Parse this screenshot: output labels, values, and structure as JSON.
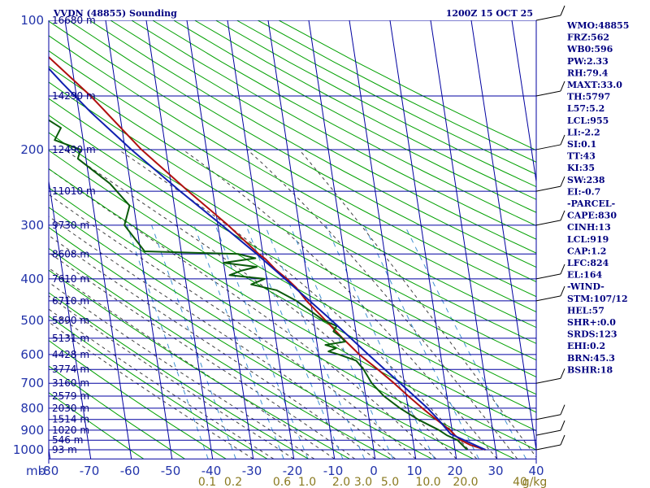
{
  "header": {
    "station_title": "VVDN (48855) Sounding",
    "time_label": "1200Z 15 OCT 25"
  },
  "chart_data": {
    "type": "line",
    "title": "VVDN (48855) Sounding",
    "x_unit_label": "mb",
    "pressure_levels": [
      100,
      200,
      300,
      400,
      500,
      600,
      700,
      800,
      900,
      1000
    ],
    "pressure_tick_labels": [
      "100",
      "200",
      "300",
      "400",
      "500",
      "600",
      "700",
      "800",
      "900",
      "1000"
    ],
    "pressure_range": [
      100,
      1050
    ],
    "pressure_scale": "log",
    "temperature_ticks": [
      -80,
      -70,
      -60,
      -50,
      -40,
      -30,
      -20,
      -10,
      0,
      10,
      20,
      30,
      40
    ],
    "temperature_tick_labels": [
      "-80",
      "-70",
      "-60",
      "-50",
      "-40",
      "-30",
      "-20",
      "-10",
      "0",
      "10",
      "20",
      "30",
      "40"
    ],
    "height_levels": [
      {
        "p": 100,
        "label": "16680 m"
      },
      {
        "p": 150,
        "label": "14290 m"
      },
      {
        "p": 200,
        "label": "12490 m"
      },
      {
        "p": 250,
        "label": "11010 m"
      },
      {
        "p": 300,
        "label": "9730 m"
      },
      {
        "p": 350,
        "label": "8608 m"
      },
      {
        "p": 400,
        "label": "7610 m"
      },
      {
        "p": 450,
        "label": "6710 m"
      },
      {
        "p": 500,
        "label": "5890 m"
      },
      {
        "p": 550,
        "label": "5131 m"
      },
      {
        "p": 600,
        "label": "4428 m"
      },
      {
        "p": 650,
        "label": "3774 m"
      },
      {
        "p": 700,
        "label": "3160 m"
      },
      {
        "p": 750,
        "label": "2579 m"
      },
      {
        "p": 800,
        "label": "2030 m"
      },
      {
        "p": 850,
        "label": "1514 m"
      },
      {
        "p": 900,
        "label": "1020 m"
      },
      {
        "p": 950,
        "label": "546 m"
      },
      {
        "p": 1000,
        "label": "93 m"
      }
    ],
    "mixing_ratio_labels": [
      "0.1",
      "0.2",
      "0.6",
      "1.0",
      "2.0",
      "3.0",
      "5.0",
      "10.0",
      "20.0",
      "40",
      "g/kg"
    ],
    "series": [
      {
        "name": "Temperature",
        "color": "#b01010",
        "points": [
          [
            1000,
            27.5
          ],
          [
            975,
            24
          ],
          [
            950,
            21.8
          ],
          [
            925,
            20.5
          ],
          [
            900,
            19.5
          ],
          [
            850,
            16.5
          ],
          [
            800,
            13.5
          ],
          [
            750,
            10.5
          ],
          [
            700,
            7.5
          ],
          [
            650,
            4
          ],
          [
            600,
            0
          ],
          [
            550,
            -3.5
          ],
          [
            500,
            -7
          ],
          [
            450,
            -11
          ],
          [
            420,
            -13
          ],
          [
            400,
            -15
          ],
          [
            380,
            -17.5
          ],
          [
            360,
            -19.5
          ],
          [
            350,
            -21
          ],
          [
            300,
            -27.5
          ],
          [
            250,
            -36
          ],
          [
            200,
            -46
          ],
          [
            150,
            -56.5
          ],
          [
            120,
            -66
          ],
          [
            100,
            -73
          ]
        ]
      },
      {
        "name": "Dewpoint",
        "color": "#0a5a0a",
        "points": [
          [
            1000,
            23
          ],
          [
            975,
            22
          ],
          [
            950,
            21
          ],
          [
            925,
            18.5
          ],
          [
            900,
            16.8
          ],
          [
            850,
            12
          ],
          [
            800,
            8
          ],
          [
            750,
            4.5
          ],
          [
            700,
            2
          ],
          [
            650,
            0.5
          ],
          [
            620,
            -1
          ],
          [
            600,
            -5
          ],
          [
            590,
            -7.5
          ],
          [
            580,
            -5.5
          ],
          [
            570,
            -8
          ],
          [
            560,
            -3
          ],
          [
            545,
            -4
          ],
          [
            530,
            -5.5
          ],
          [
            515,
            -4.5
          ],
          [
            500,
            -7.5
          ],
          [
            470,
            -11
          ],
          [
            450,
            -13.5
          ],
          [
            425,
            -18
          ],
          [
            412,
            -24
          ],
          [
            400,
            -20.5
          ],
          [
            392,
            -29
          ],
          [
            383,
            -26
          ],
          [
            375,
            -22
          ],
          [
            367,
            -30
          ],
          [
            358,
            -22
          ],
          [
            350,
            -26
          ],
          [
            345,
            -49
          ],
          [
            300,
            -53
          ],
          [
            270,
            -51
          ],
          [
            240,
            -55
          ],
          [
            210,
            -62
          ],
          [
            200,
            -61
          ],
          [
            190,
            -67
          ],
          [
            178,
            -65
          ],
          [
            165,
            -70
          ],
          [
            150,
            -74.5
          ],
          [
            130,
            -80
          ],
          [
            115,
            -83
          ],
          [
            100,
            -85
          ]
        ]
      },
      {
        "name": "Parcel",
        "color": "#1020b0",
        "points": [
          [
            1000,
            27.5
          ],
          [
            919,
            19.5
          ],
          [
            850,
            17
          ],
          [
            800,
            14.8
          ],
          [
            700,
            9
          ],
          [
            600,
            2.2
          ],
          [
            500,
            -5.5
          ],
          [
            400,
            -15.5
          ],
          [
            350,
            -21.5
          ],
          [
            300,
            -29
          ],
          [
            250,
            -38
          ],
          [
            200,
            -48.5
          ],
          [
            164,
            -57
          ],
          [
            140,
            -63
          ],
          [
            120,
            -68.5
          ],
          [
            100,
            -75
          ]
        ]
      }
    ],
    "wind_barb_levels": [
      100,
      150,
      200,
      250,
      300,
      400,
      450,
      700,
      850,
      925,
      1000
    ]
  },
  "stats": {
    "lines": [
      "WMO:48855",
      "FRZ:562",
      "WB0:596",
      "PW:2.33",
      "RH:79.4",
      "MAXT:33.0",
      "TH:5797",
      "L57:5.2",
      "LCL:955",
      "LI:-2.2",
      "SI:0.1",
      "TT:43",
      "KI:35",
      "SW:238",
      "EI:-0.7",
      "-PARCEL-",
      "CAPE:830",
      "CINH:13",
      "LCL:919",
      "CAP:1.2",
      "LFC:824",
      "EL:164",
      "-WIND-",
      "STM:107/12",
      "HEL:57",
      "SHR+:0.0",
      "SRDS:123",
      "EHI:0.2",
      "BRN:45.3",
      "BSHR:18"
    ]
  },
  "colors": {
    "isobar": "#0000a0",
    "isotherm": "#0000a0",
    "dry_adiabat": "#00a000",
    "moist_adiabat": "#404040",
    "mixing_ratio": "#4090d0",
    "temperature": "#b01010",
    "dewpoint": "#0a5a0a",
    "parcel": "#1020b0"
  }
}
